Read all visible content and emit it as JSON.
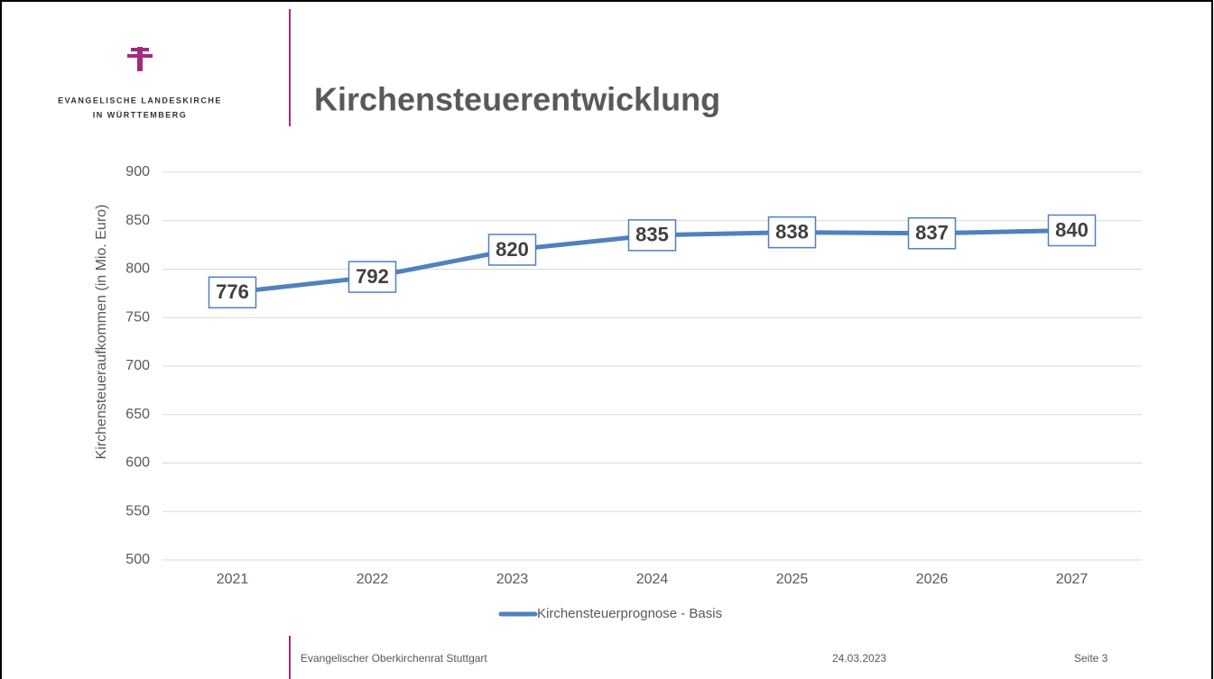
{
  "header": {
    "org_line1": "Evangelische Landeskirche",
    "org_line2": "in Württemberg",
    "title": "Kirchensteuerentwicklung"
  },
  "chart_data": {
    "type": "line",
    "y_axis_label": "Kirchensteueraufkommen (in Mio. Euro)",
    "categories": [
      "2021",
      "2022",
      "2023",
      "2024",
      "2025",
      "2026",
      "2027"
    ],
    "series": [
      {
        "name": "Kirchensteuerprognose - Basis",
        "color": "#4f81bd",
        "values": [
          776,
          792,
          820,
          835,
          838,
          837,
          840
        ]
      }
    ],
    "ylim": [
      500,
      900
    ],
    "yticks": [
      500,
      550,
      600,
      650,
      700,
      750,
      800,
      850,
      900
    ],
    "grid": true,
    "legend": "bottom"
  },
  "footer": {
    "org": "Evangelischer Oberkirchenrat Stuttgart",
    "date": "24.03.2023",
    "page": "Seite 3"
  }
}
